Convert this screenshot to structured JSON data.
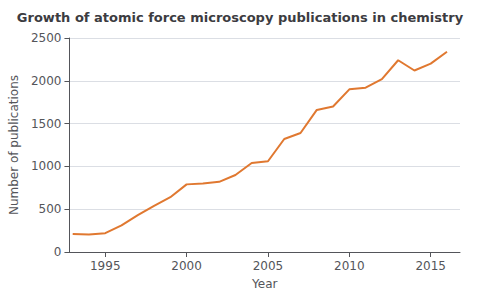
{
  "chart_data": {
    "type": "line",
    "title": "Growth of atomic force microscopy publications in chemistry",
    "xlabel": "Year",
    "ylabel": "Number of publications",
    "x": [
      1993,
      1994,
      1995,
      1996,
      1997,
      1998,
      1999,
      2000,
      2001,
      2002,
      2003,
      2004,
      2005,
      2006,
      2007,
      2008,
      2009,
      2010,
      2011,
      2012,
      2013,
      2014,
      2015,
      2016
    ],
    "values": [
      210,
      205,
      220,
      310,
      430,
      540,
      640,
      790,
      800,
      820,
      900,
      1040,
      1060,
      1320,
      1390,
      1660,
      1700,
      1900,
      1920,
      2020,
      2240,
      2120,
      2200,
      2340
    ],
    "color": "#E07830",
    "xlim": [
      1992.8,
      2016.8
    ],
    "ylim": [
      0,
      2500
    ],
    "xticks": [
      1995,
      2000,
      2005,
      2010,
      2015
    ],
    "yticks": [
      0,
      500,
      1000,
      1500,
      2000,
      2500
    ],
    "grid": true
  }
}
